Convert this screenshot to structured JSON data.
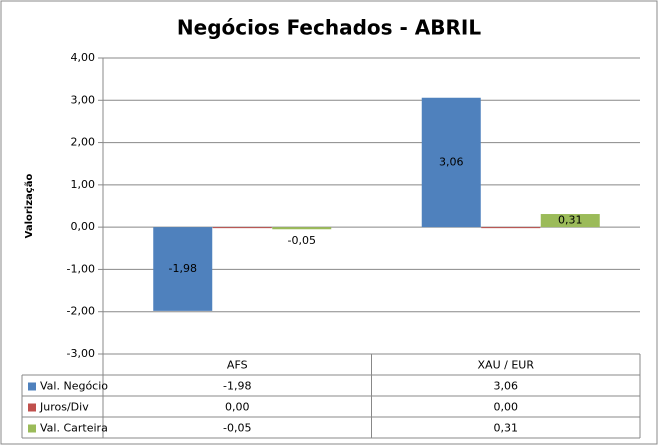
{
  "chart_data": {
    "type": "bar",
    "title": "Negócios Fechados - ABRIL",
    "y_label": "Valorização",
    "categories": [
      "AFS",
      "XAU / EUR"
    ],
    "series": [
      {
        "name": "Val. Negócio",
        "color": "#4f81bd",
        "values": [
          -1.98,
          3.06
        ],
        "value_labels": [
          "-1,98",
          "3,06"
        ],
        "show_labels": true,
        "negative_label_color": "#ff0000"
      },
      {
        "name": "Juros/Div",
        "color": "#c0504d",
        "values": [
          0,
          0
        ],
        "value_labels": [
          "0,00",
          "0,00"
        ],
        "show_labels": false
      },
      {
        "name": "Val. Carteira",
        "color": "#9bbb59",
        "values": [
          -0.05,
          0.31
        ],
        "value_labels": [
          "-0,05",
          "0,31"
        ],
        "show_labels": true
      }
    ],
    "ylim": [
      -3,
      4
    ],
    "yticks": [
      {
        "value": -3,
        "label": "-3,00"
      },
      {
        "value": -2,
        "label": "-2,00"
      },
      {
        "value": -1,
        "label": "-1,00"
      },
      {
        "value": 0,
        "label": "0,00"
      },
      {
        "value": 1,
        "label": "1,00"
      },
      {
        "value": 2,
        "label": "2,00"
      },
      {
        "value": 3,
        "label": "3,00"
      },
      {
        "value": 4,
        "label": "4,00"
      }
    ],
    "grid": true,
    "data_table": true
  }
}
